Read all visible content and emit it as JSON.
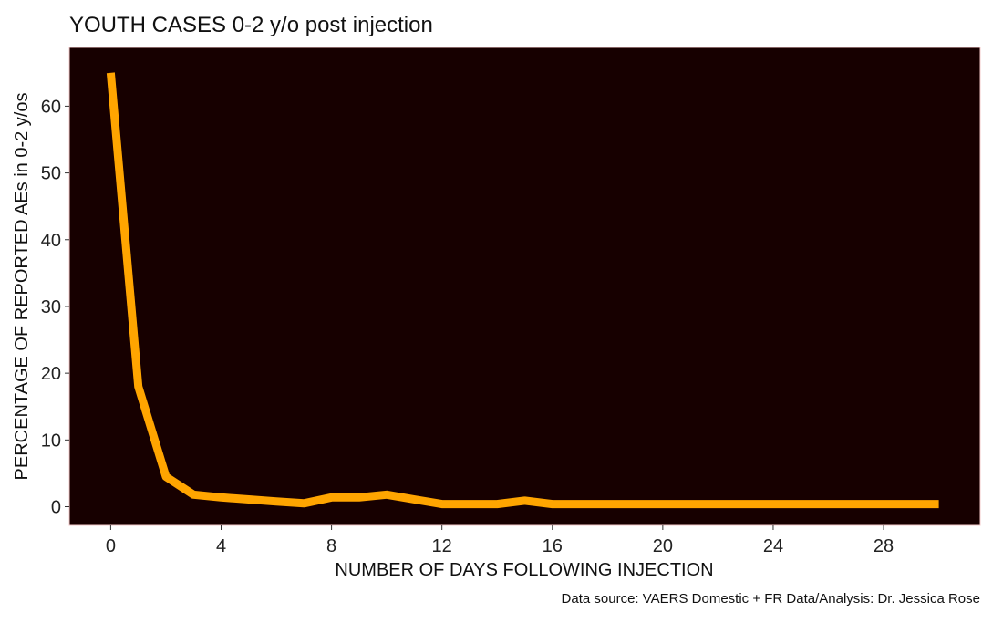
{
  "chart_data": {
    "type": "line",
    "title": "YOUTH CASES 0-2 y/o post injection",
    "xlabel": "NUMBER OF DAYS FOLLOWING INJECTION",
    "ylabel": "PERCENTAGE OF REPORTED AEs in 0-2 y/os",
    "caption": "Data source: VAERS Domestic + FR Data/Analysis: Dr. Jessica Rose",
    "xlim": [
      -1.5,
      31.5
    ],
    "ylim": [
      -2.8,
      68.8
    ],
    "x_ticks": [
      0,
      4,
      8,
      12,
      16,
      20,
      24,
      28
    ],
    "y_ticks": [
      0,
      10,
      20,
      30,
      40,
      50,
      60
    ],
    "grid": false,
    "panel_background": "#170000",
    "line_color": "#FFA500",
    "series": [
      {
        "x": [
          0,
          1,
          2,
          3,
          4,
          5,
          6,
          7,
          8,
          9,
          10,
          11,
          12,
          13,
          14,
          15,
          16,
          17,
          18,
          19,
          20,
          21,
          22,
          23,
          24,
          25,
          26,
          27,
          28,
          29,
          30
        ],
        "values": [
          65,
          18,
          4.5,
          1.8,
          1.4,
          1.1,
          0.8,
          0.5,
          1.4,
          1.4,
          1.8,
          1.1,
          0.4,
          0.4,
          0.4,
          0.9,
          0.4,
          0.4,
          0.4,
          0.4,
          0.4,
          0.4,
          0.4,
          0.4,
          0.4,
          0.4,
          0.4,
          0.4,
          0.4,
          0.4,
          0.4
        ]
      }
    ]
  }
}
